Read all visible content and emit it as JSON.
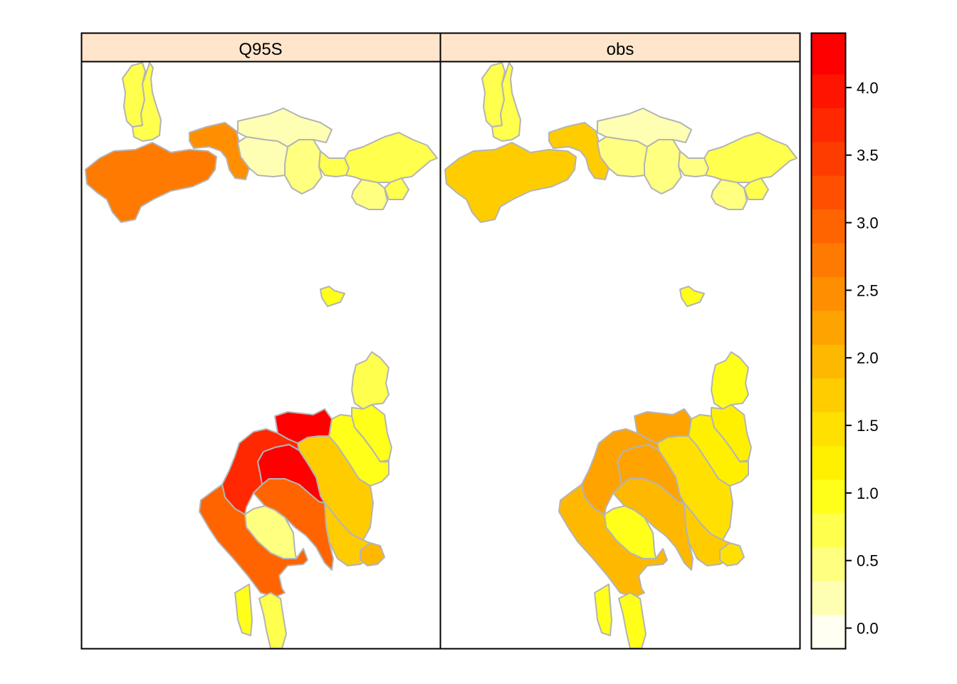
{
  "panels": [
    {
      "name": "Q95S",
      "values": {
        "r1": 0.8,
        "r2": 0.8,
        "r3": 2.7,
        "r4": 2.5,
        "r5": 0.3,
        "r6": 0.1,
        "r7": 0.5,
        "r8": 0.6,
        "r9": 0.6,
        "r10": 0.4,
        "r11": 0.8,
        "r12": 1.0,
        "r13": 0.8,
        "r14": 1.0,
        "r15": 0.9,
        "r16": 1.7,
        "r17": 1.8,
        "r18": 1.9,
        "r19": 4.3,
        "r20": 3.7,
        "r21": 4.1,
        "r22": 3.0,
        "r23": 0.4,
        "r24": 2.9,
        "r25": 1.0,
        "r26": 0.6,
        "r27": 0.5,
        "r28": 0.6,
        "r29": 0.6
      }
    },
    {
      "name": "obs",
      "values": {
        "r1": 0.8,
        "r2": 0.8,
        "r3": 1.8,
        "r4": 1.7,
        "r5": 0.4,
        "r6": 0.3,
        "r7": 0.5,
        "r8": 0.5,
        "r9": 0.7,
        "r10": 0.5,
        "r11": 0.7,
        "r12": 1.0,
        "r13": 0.9,
        "r14": 1.1,
        "r15": 1.2,
        "r16": 1.5,
        "r17": 1.6,
        "r18": 1.4,
        "r19": 2.1,
        "r20": 2.1,
        "r21": 2.2,
        "r22": 2.0,
        "r23": 0.9,
        "r24": 1.9,
        "r25": 0.9,
        "r26": 1.0,
        "r27": 0.8,
        "r28": 0.7,
        "r29": 0.7
      }
    }
  ],
  "colorkey": {
    "min": -0.15,
    "max": 4.4,
    "breaks": [
      -0.15,
      0.1,
      0.35,
      0.6,
      0.85,
      1.1,
      1.35,
      1.6,
      1.85,
      2.1,
      2.35,
      2.6,
      2.85,
      3.1,
      3.35,
      3.6,
      3.85,
      4.1,
      4.4
    ],
    "colors": [
      "#FFFFF2",
      "#FFFFB3",
      "#FFFF80",
      "#FFFF4D",
      "#FFFF1A",
      "#FFF000",
      "#FFE000",
      "#FFCC00",
      "#FFB800",
      "#FFA300",
      "#FF8F00",
      "#FF7A00",
      "#FF6400",
      "#FF5000",
      "#FF3C00",
      "#FF2800",
      "#FF1400",
      "#FF0000"
    ],
    "ticks": [
      {
        "value": 0.0,
        "label": "0.0"
      },
      {
        "value": 0.5,
        "label": "0.5"
      },
      {
        "value": 1.0,
        "label": "1.0"
      },
      {
        "value": 1.5,
        "label": "1.5"
      },
      {
        "value": 2.0,
        "label": "2.0"
      },
      {
        "value": 2.5,
        "label": "2.5"
      },
      {
        "value": 3.0,
        "label": "3.0"
      },
      {
        "value": 3.5,
        "label": "3.5"
      },
      {
        "value": 4.0,
        "label": "4.0"
      }
    ]
  },
  "colors": {
    "strip_bg": "#FFE5CC",
    "border": "#b4b4b4",
    "frame": "#000000"
  }
}
